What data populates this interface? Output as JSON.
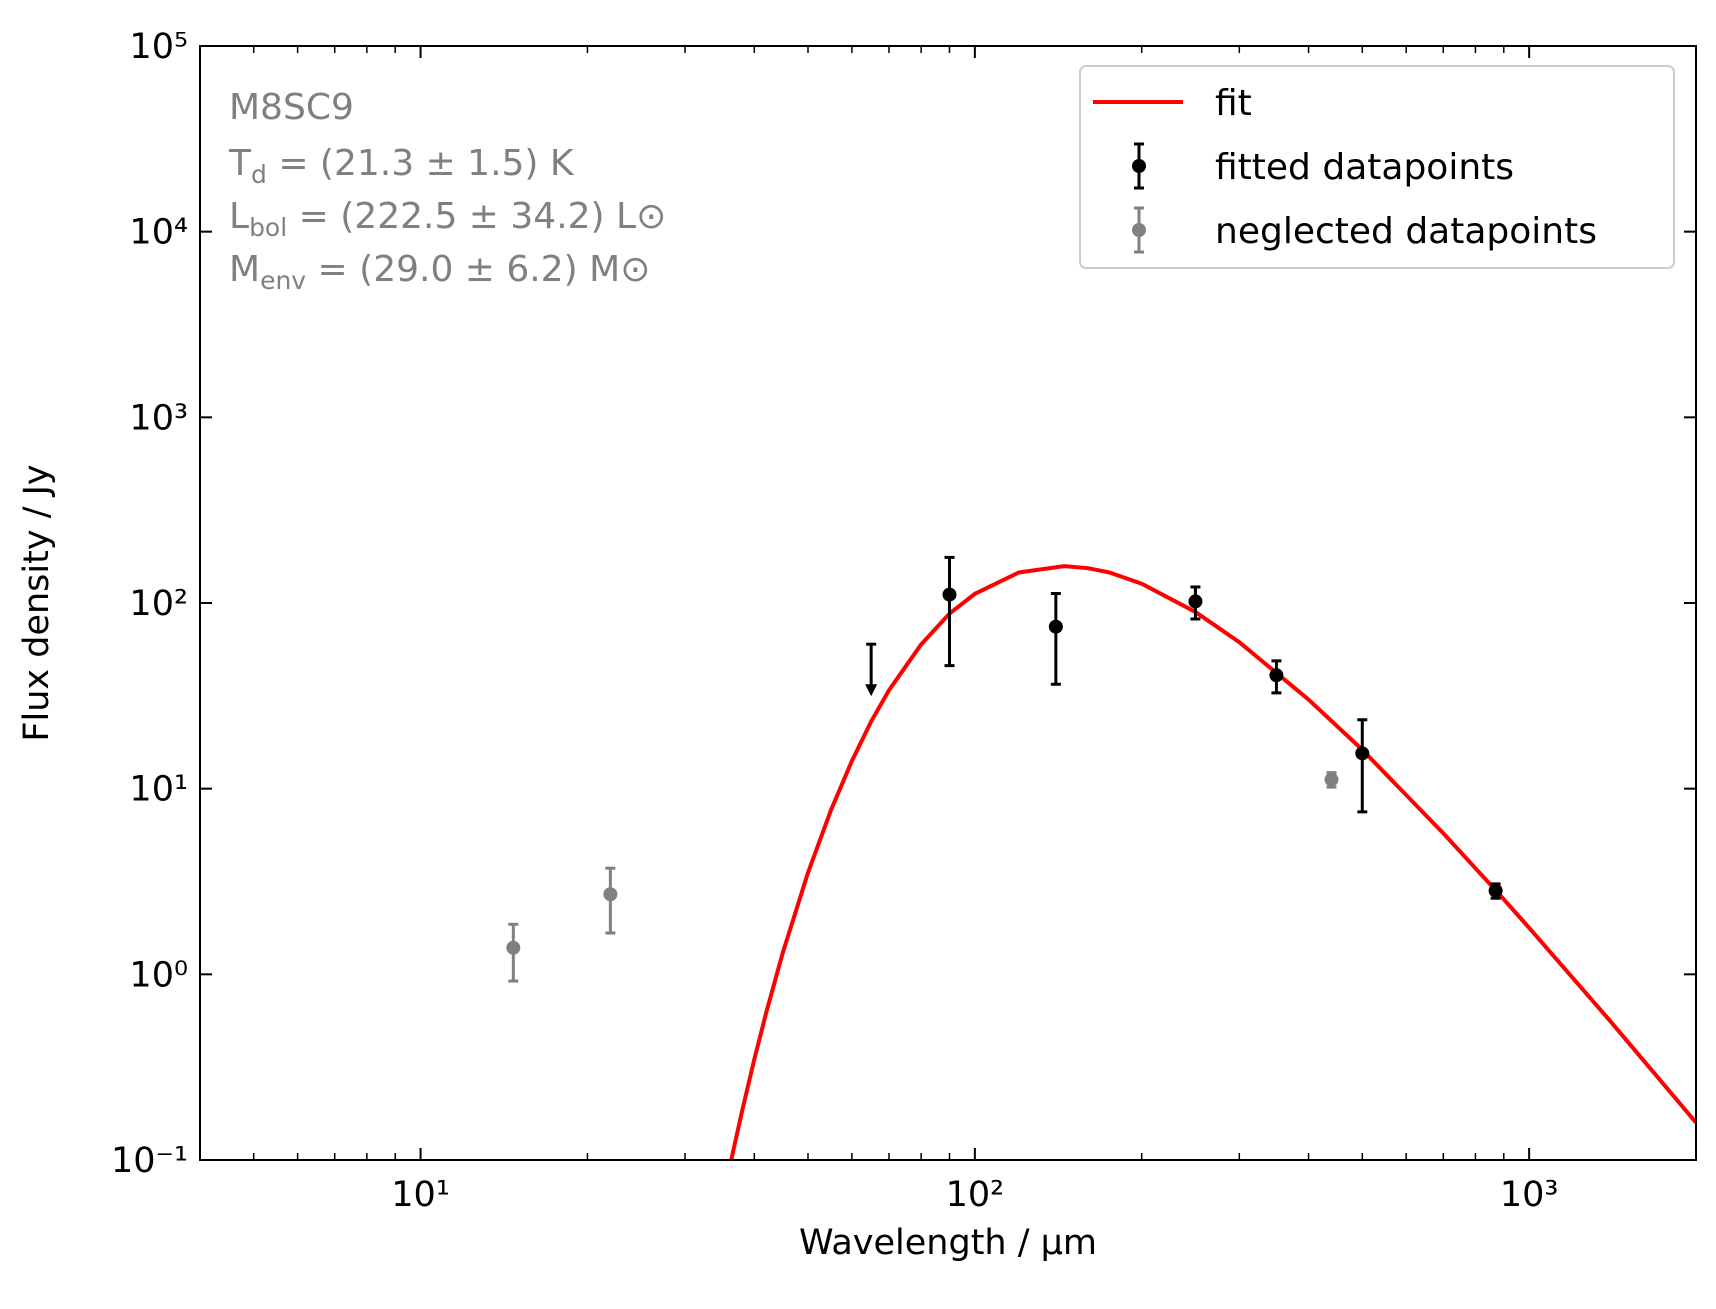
{
  "chart_data": {
    "type": "scatter",
    "xlabel": "Wavelength / μm",
    "ylabel": "Flux density / Jy",
    "xscale": "log",
    "yscale": "log",
    "xlim": [
      4,
      2000
    ],
    "ylim": [
      0.1,
      100000
    ],
    "xticks": [
      {
        "value": 10,
        "label": "10¹"
      },
      {
        "value": 100,
        "label": "10²"
      },
      {
        "value": 1000,
        "label": "10³"
      }
    ],
    "xminorticks": [
      5,
      6,
      7,
      8,
      9,
      20,
      30,
      40,
      50,
      60,
      70,
      80,
      90,
      200,
      300,
      400,
      500,
      600,
      700,
      800,
      900
    ],
    "yticks": [
      {
        "value": 0.1,
        "label": "10⁻¹"
      },
      {
        "value": 1,
        "label": "10⁰"
      },
      {
        "value": 10,
        "label": "10¹"
      },
      {
        "value": 100,
        "label": "10²"
      },
      {
        "value": 1000,
        "label": "10³"
      },
      {
        "value": 10000,
        "label": "10⁴"
      },
      {
        "value": 100000,
        "label": "10⁵"
      }
    ],
    "legend": "upper right",
    "annotation": {
      "color": "#808080",
      "source": "M8SC9",
      "lines": [
        {
          "symbol": "T",
          "sub": "d",
          "text": " = (21.3 ± 1.5) K"
        },
        {
          "symbol": "L",
          "sub": "bol",
          "text": " = (222.5 ± 34.2) L⊙"
        },
        {
          "symbol": "M",
          "sub": "env",
          "text": " = (29.0 ± 6.2) M⊙"
        }
      ]
    },
    "series": [
      {
        "name": "fit",
        "style": "line",
        "color": "#ff0000",
        "x": [
          36,
          38,
          40,
          42,
          45,
          50,
          55,
          60,
          65,
          70,
          80,
          90,
          100,
          120,
          145,
          160,
          175,
          200,
          250,
          300,
          400,
          500,
          700,
          870,
          1000,
          1400,
          2000
        ],
        "values": [
          0.088,
          0.182,
          0.348,
          0.617,
          1.3,
          3.53,
          7.66,
          14.1,
          23,
          33.9,
          59.8,
          87.7,
          112,
          146,
          158,
          154,
          146,
          127,
          89.5,
          61.5,
          30.2,
          16.2,
          5.75,
          2.84,
          1.78,
          0.561,
          0.159
        ]
      },
      {
        "name": "fitted datapoints",
        "style": "errorbar",
        "color": "#000000",
        "x": [
          90,
          140,
          250,
          350,
          500,
          870
        ],
        "values": [
          111,
          74.5,
          102,
          40.8,
          15.5,
          2.82
        ],
        "errors": [
          65,
          38,
          20,
          8,
          8,
          0.25
        ],
        "upper_limits": {
          "x": [
            65
          ],
          "values": [
            60
          ]
        }
      },
      {
        "name": "neglected datapoints",
        "style": "errorbar",
        "color": "#808080",
        "x": [
          14.7,
          22,
          440
        ],
        "values": [
          1.39,
          2.7,
          11.2
        ],
        "errors": [
          0.47,
          1.03,
          1.0
        ]
      }
    ]
  }
}
